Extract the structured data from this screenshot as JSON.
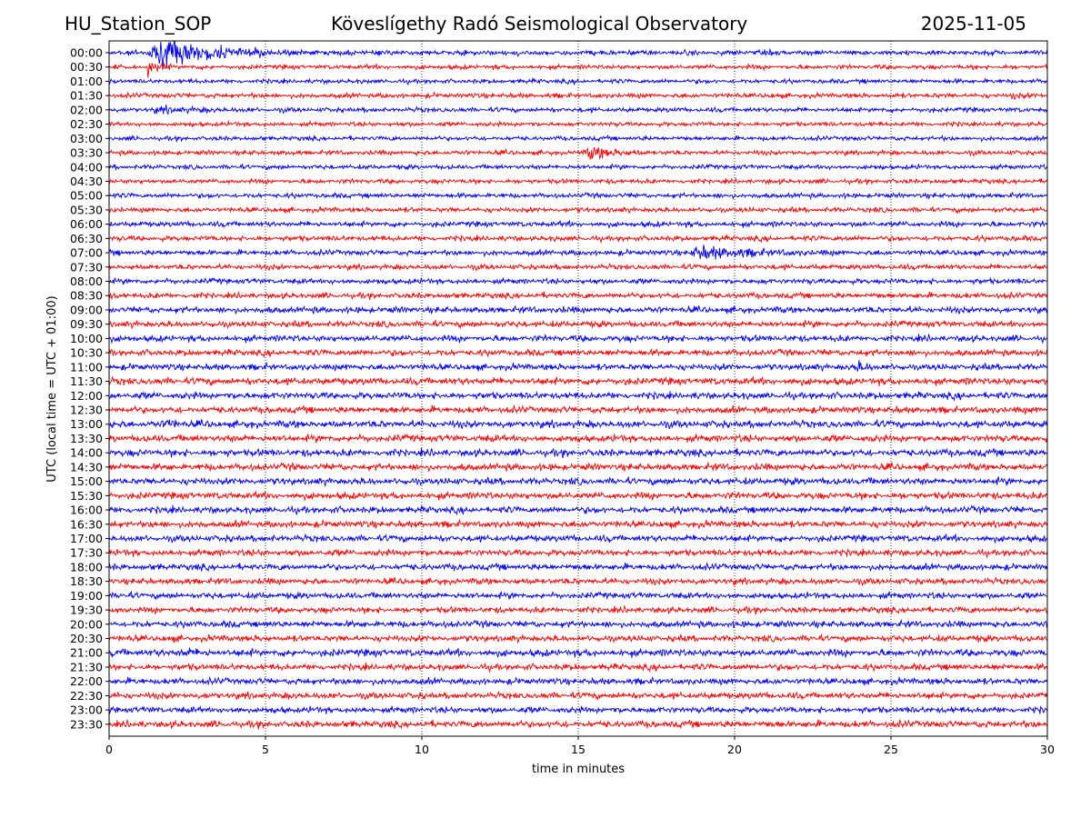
{
  "header": {
    "station": "HU_Station_SOP",
    "observatory": "Köveslígethy Radó Seismological Observatory",
    "date": "2025-11-05"
  },
  "chart_data": {
    "type": "line",
    "title": "Köveslígethy Radó Seismological Observatory",
    "xlabel": "time in minutes",
    "ylabel": "UTC (local time = UTC + 01:00)",
    "xlim": [
      0,
      30
    ],
    "xticks": [
      "0",
      "5",
      "10",
      "15",
      "20",
      "25",
      "30"
    ],
    "xtick_values": [
      0,
      5,
      10,
      15,
      20,
      25,
      30
    ],
    "grid": "vertical dotted at x ticks",
    "rows": [
      "00:00",
      "00:30",
      "01:00",
      "01:30",
      "02:00",
      "02:30",
      "03:00",
      "03:30",
      "04:00",
      "04:30",
      "05:00",
      "05:30",
      "06:00",
      "06:30",
      "07:00",
      "07:30",
      "08:00",
      "08:30",
      "09:00",
      "09:30",
      "10:00",
      "10:30",
      "11:00",
      "11:30",
      "12:00",
      "12:30",
      "13:00",
      "13:30",
      "14:00",
      "14:30",
      "15:00",
      "15:30",
      "16:00",
      "16:30",
      "17:00",
      "17:30",
      "18:00",
      "18:30",
      "19:00",
      "19:30",
      "20:00",
      "20:30",
      "21:00",
      "21:30",
      "22:00",
      "22:30",
      "23:00",
      "23:30"
    ],
    "colors": {
      "even_rows": "#0000ff",
      "odd_rows": "#ff0000"
    },
    "noise_levels": [
      0.3,
      0.2,
      0.2,
      0.25,
      0.25,
      0.2,
      0.2,
      0.22,
      0.22,
      0.22,
      0.25,
      0.28,
      0.32,
      0.32,
      0.32,
      0.3,
      0.33,
      0.35,
      0.45,
      0.42,
      0.45,
      0.42,
      0.45,
      0.55,
      0.5,
      0.5,
      0.55,
      0.55,
      0.55,
      0.52,
      0.52,
      0.5,
      0.5,
      0.48,
      0.48,
      0.45,
      0.45,
      0.42,
      0.42,
      0.42,
      0.45,
      0.45,
      0.55,
      0.45,
      0.45,
      0.45,
      0.45,
      0.5
    ],
    "events": [
      {
        "row": "00:00",
        "start_min": 1.2,
        "end_min": 6.0,
        "peak_amp": 14
      },
      {
        "row": "00:30",
        "start_min": 1.2,
        "end_min": 2.0,
        "peak_amp": 8
      },
      {
        "row": "01:30",
        "start_min": 28.8,
        "end_min": 29.6,
        "peak_amp": 2
      },
      {
        "row": "02:00",
        "start_min": 1.3,
        "end_min": 5.0,
        "peak_amp": 2
      },
      {
        "row": "03:30",
        "start_min": 15.2,
        "end_min": 17.5,
        "peak_amp": 6
      },
      {
        "row": "07:00",
        "start_min": 18.5,
        "end_min": 23.0,
        "peak_amp": 6
      },
      {
        "row": "11:00",
        "start_min": 23.8,
        "end_min": 25.0,
        "peak_amp": 4
      },
      {
        "row": "13:00",
        "start_min": 1.8,
        "end_min": 2.6,
        "peak_amp": 4
      },
      {
        "row": "21:00",
        "start_min": 2.2,
        "end_min": 3.2,
        "peak_amp": 3
      }
    ]
  }
}
